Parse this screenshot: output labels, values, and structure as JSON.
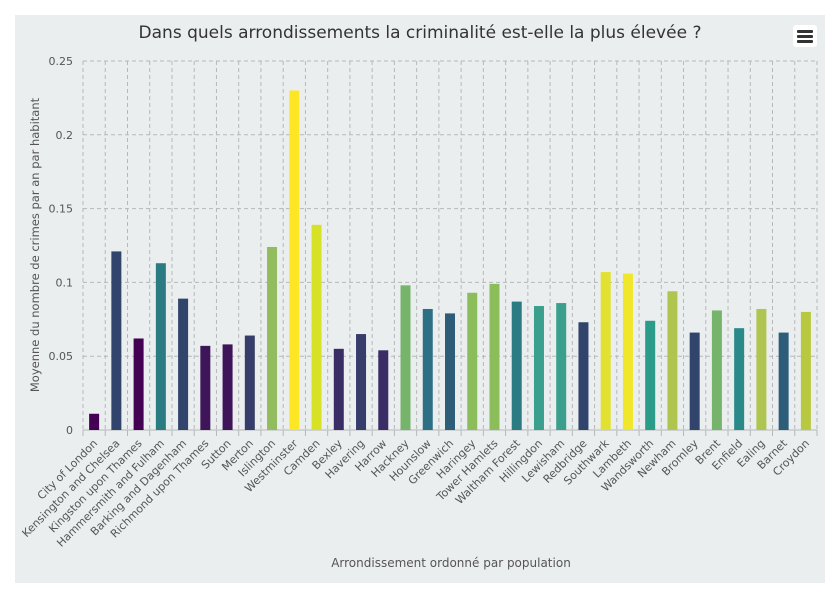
{
  "chart_data": {
    "type": "bar",
    "title": "Dans quels arrondissements la criminalité est-elle la plus élevée ?",
    "xlabel": "Arrondissement ordonné par population",
    "ylabel": "Moyenne du nombre de crimes par an par habitant",
    "ylim": [
      0,
      0.25
    ],
    "yticks": [
      0,
      0.05,
      0.1,
      0.15,
      0.2,
      0.25
    ],
    "ytick_labels": [
      "0",
      "0.05",
      "0.1",
      "0.15",
      "0.2",
      "0.25"
    ],
    "grid": true,
    "categories": [
      "City of London",
      "Kensington and Chelsea",
      "Kingston upon Thames",
      "Hammersmith and Fulham",
      "Barking and Dagenham",
      "Richmond upon Thames",
      "Sutton",
      "Merton",
      "Islington",
      "Westminster",
      "Camden",
      "Bexley",
      "Havering",
      "Harrow",
      "Hackney",
      "Hounslow",
      "Greenwich",
      "Haringey",
      "Tower Hamlets",
      "Waltham Forest",
      "Hillingdon",
      "Lewisham",
      "Redbridge",
      "Southwark",
      "Lambeth",
      "Wandsworth",
      "Newham",
      "Bromley",
      "Brent",
      "Enfield",
      "Ealing",
      "Barnet",
      "Croydon"
    ],
    "values": [
      0.011,
      0.121,
      0.062,
      0.113,
      0.089,
      0.057,
      0.058,
      0.064,
      0.124,
      0.23,
      0.139,
      0.055,
      0.065,
      0.054,
      0.098,
      0.082,
      0.079,
      0.093,
      0.099,
      0.087,
      0.084,
      0.086,
      0.073,
      0.107,
      0.106,
      0.074,
      0.094,
      0.066,
      0.081,
      0.069,
      0.082,
      0.066,
      0.08
    ],
    "colors": [
      "#440154",
      "#31446b",
      "#440154",
      "#2a7b82",
      "#31446b",
      "#3e1559",
      "#3e1559",
      "#373d6b",
      "#92bd5e",
      "#fde725",
      "#d7e226",
      "#3a2d66",
      "#373d6b",
      "#3a2d66",
      "#75b46a",
      "#2d6f85",
      "#2e5d7a",
      "#8cbd5b",
      "#8cbd5b",
      "#2a7b82",
      "#3aa08d",
      "#3aa08d",
      "#31446b",
      "#e2e031",
      "#f0e62a",
      "#2d9b8a",
      "#afc550",
      "#31446b",
      "#75b46a",
      "#2a8a8a",
      "#afc550",
      "#2e5d7a",
      "#b8c840"
    ]
  },
  "menu_icon": "hamburger-menu-icon"
}
